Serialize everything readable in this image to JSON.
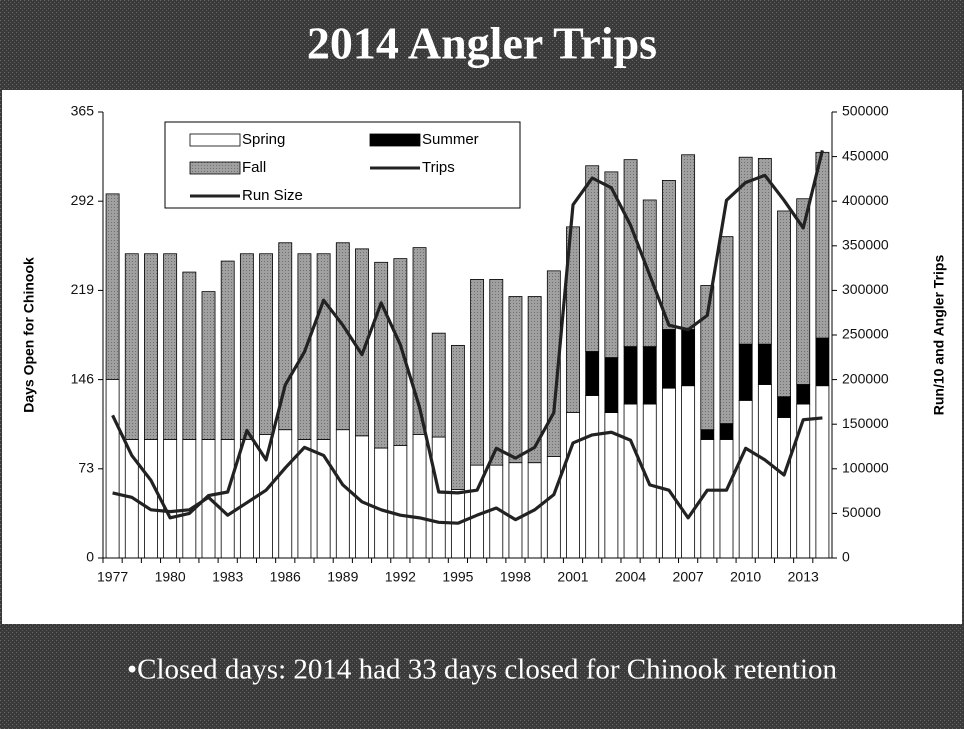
{
  "title": "2014 Angler Trips",
  "bullet": "•Closed days: 2014 had 33 days closed for Chinook retention",
  "chart_data": {
    "type": "bar_line",
    "ylabel": "Days Open for Chinook",
    "y2label": "Run/10 and Angler Trips",
    "categories": [
      "1977",
      null,
      null,
      "1980",
      null,
      null,
      "1983",
      null,
      null,
      "1986",
      null,
      null,
      "1989",
      null,
      null,
      "1992",
      null,
      null,
      "1995",
      null,
      null,
      "1998",
      null,
      null,
      "2001",
      null,
      null,
      "2004",
      null,
      null,
      "2007",
      null,
      null,
      "2010",
      null,
      null,
      "2013",
      null
    ],
    "ylim": [
      0,
      365
    ],
    "yticks": [
      0,
      73,
      146,
      219,
      292,
      365
    ],
    "y2lim": [
      0,
      500000
    ],
    "y2ticks": [
      0,
      50000,
      100000,
      150000,
      200000,
      250000,
      300000,
      350000,
      400000,
      450000,
      500000
    ],
    "series": [
      {
        "name": "Spring",
        "type": "bar",
        "color": "#ffffff",
        "values": [
          146,
          97,
          97,
          97,
          97,
          97,
          97,
          97,
          101,
          105,
          97,
          97,
          105,
          100,
          90,
          92,
          101,
          99,
          56,
          76,
          76,
          78,
          78,
          83,
          119,
          133,
          119,
          126,
          126,
          139,
          141,
          97,
          97,
          129,
          142,
          115,
          126,
          141
        ]
      },
      {
        "name": "Summer",
        "type": "bar",
        "color": "#000000",
        "values": [
          0,
          0,
          0,
          0,
          0,
          0,
          0,
          0,
          0,
          0,
          0,
          0,
          0,
          0,
          0,
          0,
          0,
          0,
          0,
          0,
          0,
          0,
          0,
          0,
          0,
          36,
          45,
          47,
          47,
          48,
          46,
          8,
          13,
          46,
          33,
          17,
          16,
          39
        ]
      },
      {
        "name": "Fall",
        "type": "bar",
        "color": "#999999",
        "values": [
          152,
          152,
          152,
          152,
          137,
          121,
          146,
          152,
          148,
          153,
          152,
          152,
          153,
          153,
          152,
          153,
          153,
          85,
          118,
          152,
          152,
          136,
          136,
          152,
          152,
          152,
          152,
          153,
          120,
          122,
          143,
          118,
          153,
          153,
          152,
          152,
          152,
          152
        ]
      },
      {
        "name": "Trips",
        "type": "line",
        "axis": "y2",
        "color": "#222222",
        "values": [
          160000,
          115000,
          87000,
          45000,
          50000,
          70000,
          74000,
          143000,
          110000,
          194000,
          231000,
          289000,
          261000,
          228000,
          286000,
          239000,
          169000,
          74000,
          73000,
          76000,
          123000,
          112000,
          124000,
          163000,
          396000,
          426000,
          415000,
          373000,
          317000,
          261000,
          256000,
          272000,
          401000,
          421000,
          429000,
          401000,
          370000,
          457000
        ]
      },
      {
        "name": "Run Size",
        "type": "line",
        "axis": "y2",
        "color": "#222222",
        "values": [
          73000,
          68000,
          54000,
          52000,
          54000,
          68000,
          48000,
          62000,
          76000,
          101000,
          124000,
          115000,
          82000,
          63000,
          54000,
          48000,
          45000,
          40000,
          39000,
          48000,
          56000,
          43000,
          54000,
          71000,
          129000,
          138000,
          141000,
          132000,
          82000,
          76000,
          45000,
          76000,
          76000,
          123000,
          110000,
          93000,
          155000,
          157000
        ]
      }
    ]
  }
}
